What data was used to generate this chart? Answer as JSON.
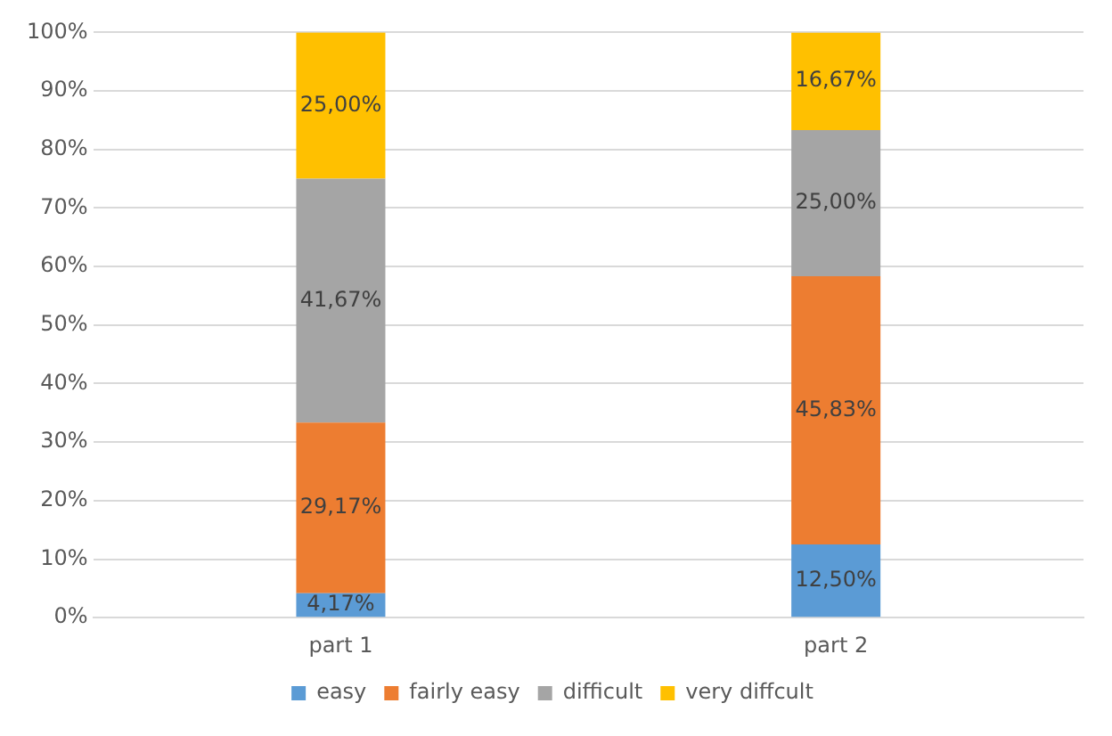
{
  "chart_data": {
    "type": "bar",
    "stacked": true,
    "categories": [
      "part 1",
      "part 2"
    ],
    "series": [
      {
        "name": "easy",
        "color": "#5b9bd5",
        "values": [
          4.17,
          12.5
        ],
        "value_labels": [
          "4,17%",
          "12,50%"
        ]
      },
      {
        "name": "fairly easy",
        "color": "#ed7d31",
        "values": [
          29.17,
          45.83
        ],
        "value_labels": [
          "29,17%",
          "45,83%"
        ]
      },
      {
        "name": "difficult",
        "color": "#a5a5a5",
        "values": [
          41.67,
          25.0
        ],
        "value_labels": [
          "41,67%",
          "25,00%"
        ]
      },
      {
        "name": "very diffcult",
        "color": "#ffc000",
        "values": [
          25.0,
          16.67
        ],
        "value_labels": [
          "25,00%",
          "16,67%"
        ]
      }
    ],
    "ylim": [
      0,
      100
    ],
    "yticks": [
      {
        "value": 0,
        "label": "0%"
      },
      {
        "value": 10,
        "label": "10%"
      },
      {
        "value": 20,
        "label": "20%"
      },
      {
        "value": 30,
        "label": "30%"
      },
      {
        "value": 40,
        "label": "40%"
      },
      {
        "value": 50,
        "label": "50%"
      },
      {
        "value": 60,
        "label": "60%"
      },
      {
        "value": 70,
        "label": "70%"
      },
      {
        "value": 80,
        "label": "80%"
      },
      {
        "value": 90,
        "label": "90%"
      },
      {
        "value": 100,
        "label": "100%"
      }
    ],
    "grid": "y",
    "legend": "bottom"
  }
}
